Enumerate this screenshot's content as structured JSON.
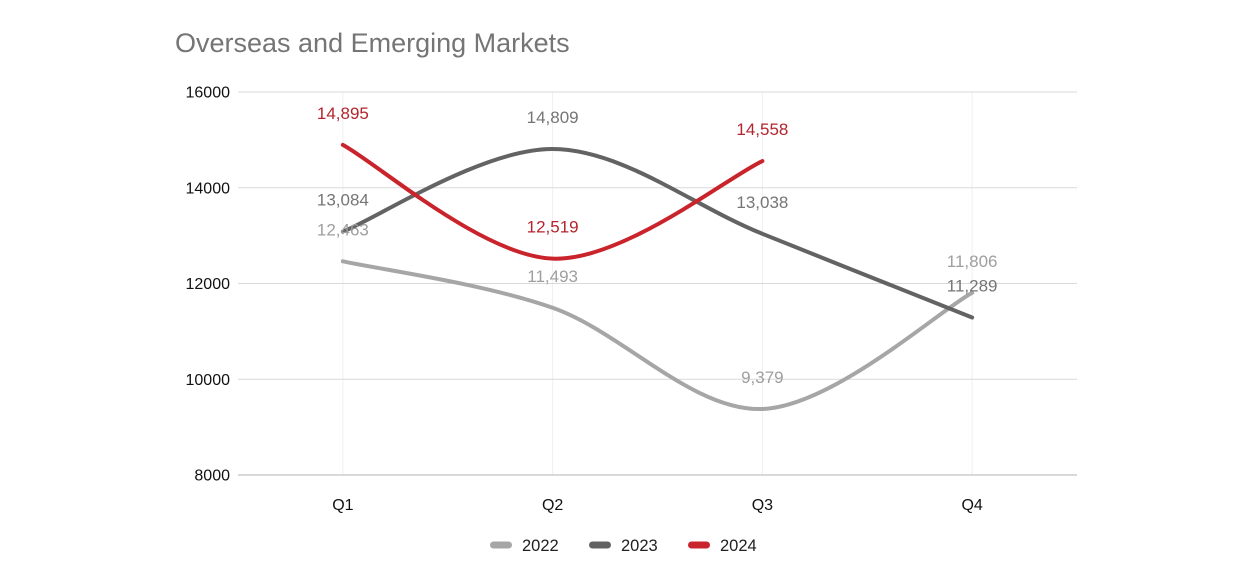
{
  "chart_data": {
    "type": "line",
    "title": "Overseas and Emerging Markets",
    "categories": [
      "Q1",
      "Q2",
      "Q3",
      "Q4"
    ],
    "series": [
      {
        "name": "2022",
        "values": [
          12463,
          11493,
          9379,
          11806
        ],
        "labels": [
          "12,463",
          "11,493",
          "9,379",
          "11,806"
        ],
        "color": "#a6a6a6",
        "label_color": "#9e9e9e"
      },
      {
        "name": "2023",
        "values": [
          13084,
          14809,
          13038,
          11289
        ],
        "labels": [
          "13,084",
          "14,809",
          "13,038",
          "11,289"
        ],
        "color": "#636363",
        "label_color": "#757575"
      },
      {
        "name": "2024",
        "values": [
          14895,
          12519,
          14558,
          null
        ],
        "labels": [
          "14,895",
          "12,519",
          "14,558",
          null
        ],
        "color": "#c9232b",
        "label_color": "#b3242c"
      }
    ],
    "xlabel": "",
    "ylabel": "",
    "ylim": [
      8000,
      16000
    ],
    "yticks": [
      8000,
      10000,
      12000,
      14000,
      16000
    ],
    "ytick_labels": [
      "8000",
      "10000",
      "12000",
      "14000",
      "16000"
    ],
    "grid": true,
    "smooth": true,
    "legend_position": "bottom",
    "colors": {
      "title": "#757575",
      "axis_text": "#111111",
      "legend_text": "#212121",
      "gridline": "#d9d9d9",
      "baseline": "#b3b3b3",
      "vertical_gridline": "#efefef",
      "background": "#ffffff"
    }
  }
}
